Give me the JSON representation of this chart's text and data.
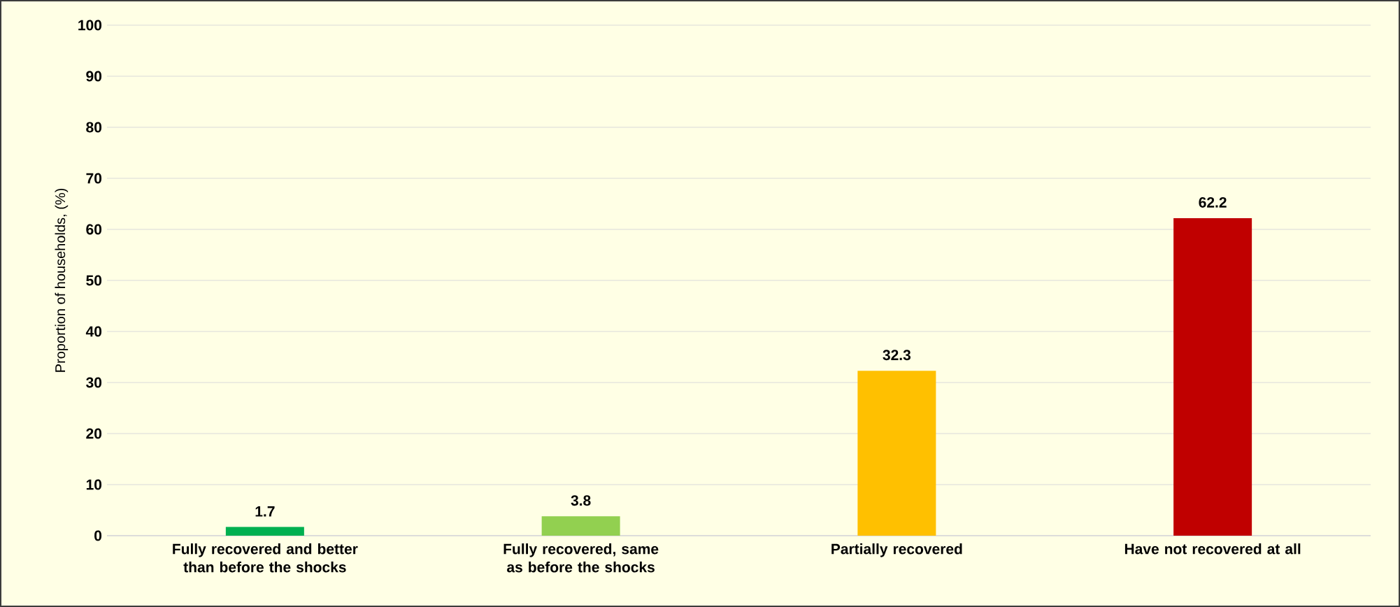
{
  "chart_data": {
    "type": "bar",
    "ylabel": "Proportion of households, (%)",
    "categories": [
      "Fully recovered and better than before the shocks",
      "Fully recovered, same as before the shocks",
      "Partially recovered",
      "Have not recovered at all"
    ],
    "values": [
      1.7,
      3.8,
      32.3,
      62.2
    ],
    "colors": [
      "#00b050",
      "#92d050",
      "#ffc000",
      "#c00000"
    ],
    "ylim": [
      0,
      100
    ],
    "yticks": [
      0,
      10,
      20,
      30,
      40,
      50,
      60,
      70,
      80,
      90,
      100
    ],
    "grid": "y",
    "data_labels": true
  }
}
